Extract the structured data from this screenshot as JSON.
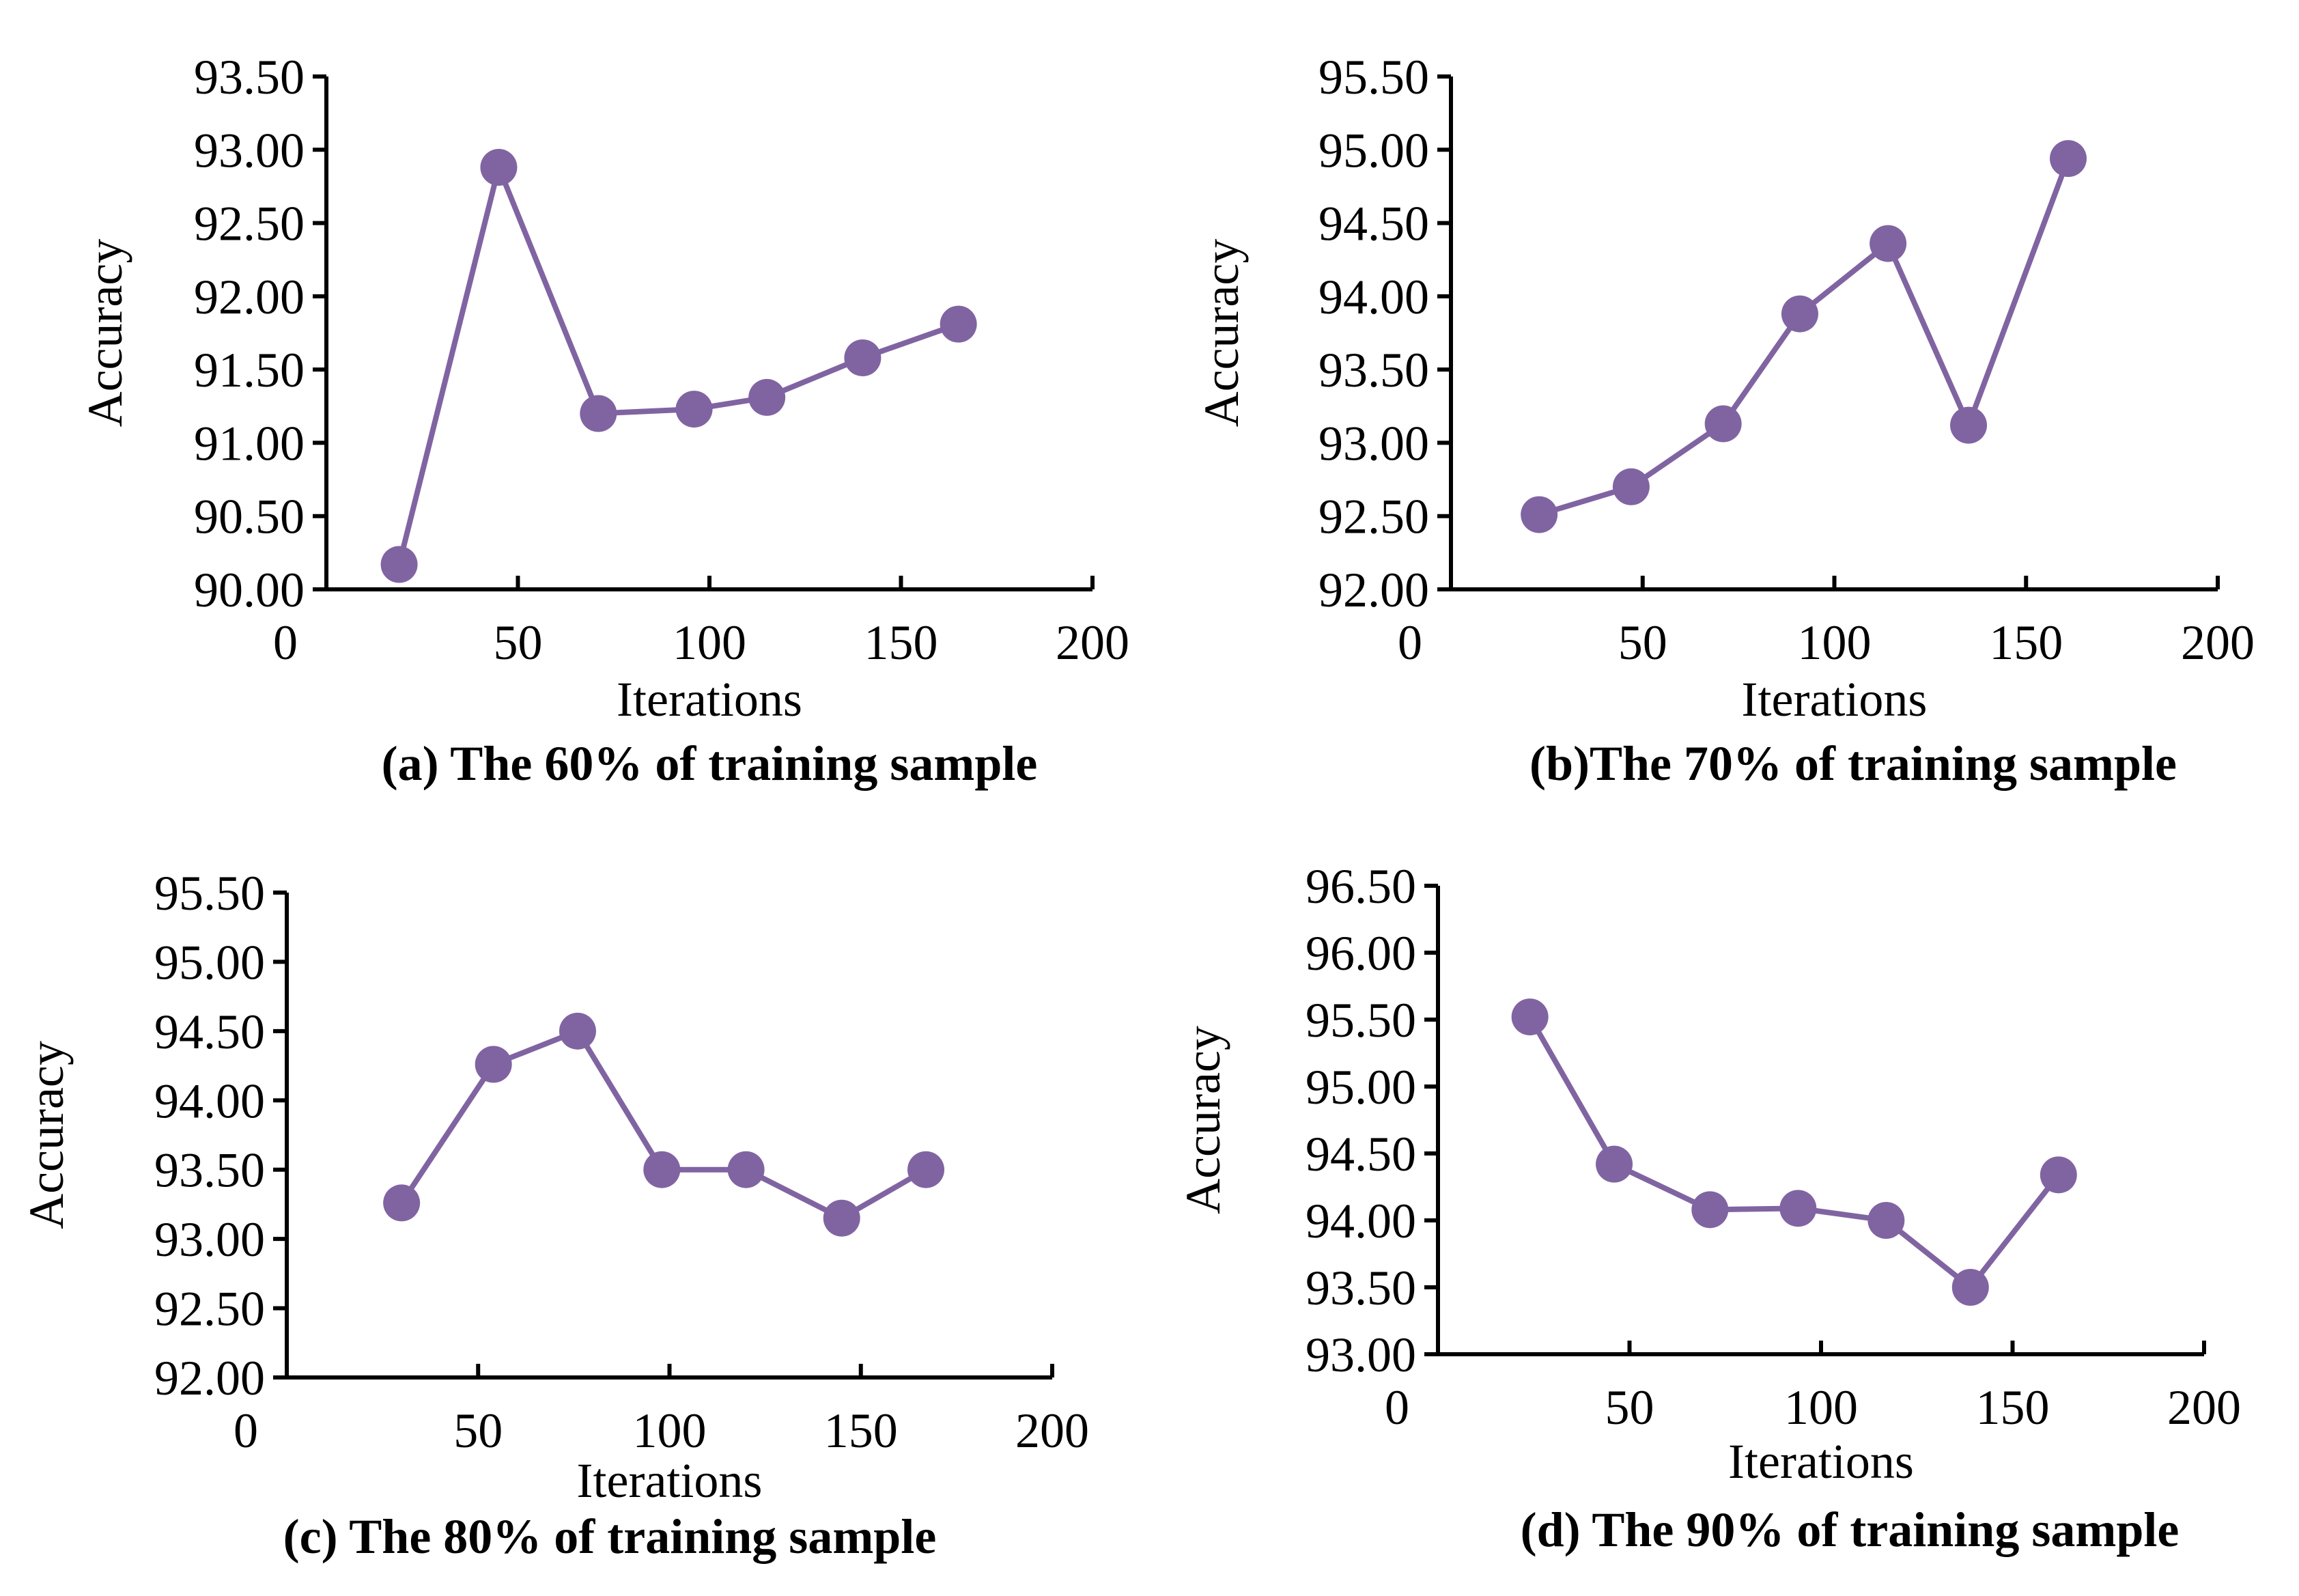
{
  "figure": {
    "series_color": "#8064a2",
    "axis_color": "#000000"
  },
  "chart_data": [
    {
      "type": "line",
      "caption": "(a) The 60% of training sample",
      "xlabel": "Iterations",
      "ylabel": "Accuracy",
      "xlim": [
        0,
        200
      ],
      "ylim": [
        90.0,
        93.5
      ],
      "xticks": [
        0,
        50,
        100,
        150,
        200
      ],
      "yticks": [
        90.0,
        90.5,
        91.0,
        91.5,
        92.0,
        92.5,
        93.0,
        93.5
      ],
      "xtick_labels": [
        "0",
        "50",
        "100",
        "150",
        "200"
      ],
      "ytick_labels": [
        "90.00",
        "90.50",
        "91.00",
        "91.50",
        "92.00",
        "92.50",
        "93.00",
        "93.50"
      ],
      "series": [
        {
          "name": "Accuracy",
          "x": [
            19,
            45,
            71,
            96,
            115,
            140,
            165
          ],
          "y": [
            90.17,
            92.88,
            91.2,
            91.23,
            91.31,
            91.58,
            91.81
          ]
        }
      ]
    },
    {
      "type": "line",
      "caption": "(b)The 70% of training sample",
      "xlabel": "Iterations",
      "ylabel": "Accuracy",
      "xlim": [
        0,
        200
      ],
      "ylim": [
        92.0,
        95.5
      ],
      "xticks": [
        0,
        50,
        100,
        150,
        200
      ],
      "yticks": [
        92.0,
        92.5,
        93.0,
        93.5,
        94.0,
        94.5,
        95.0,
        95.5
      ],
      "xtick_labels": [
        "0",
        "50",
        "100",
        "150",
        "200"
      ],
      "ytick_labels": [
        "92.00",
        "92.50",
        "93.00",
        "93.50",
        "94.00",
        "94.50",
        "95.00",
        "95.50"
      ],
      "series": [
        {
          "name": "Accuracy",
          "x": [
            23,
            47,
            71,
            91,
            114,
            135,
            161
          ],
          "y": [
            92.51,
            92.7,
            93.13,
            93.88,
            94.36,
            93.12,
            94.94
          ]
        }
      ]
    },
    {
      "type": "line",
      "caption": "(c) The 80% of training sample",
      "xlabel": "Iterations",
      "ylabel": "Accuracy",
      "xlim": [
        0,
        200
      ],
      "ylim": [
        92.0,
        95.5
      ],
      "xticks": [
        0,
        50,
        100,
        150,
        200
      ],
      "yticks": [
        92.0,
        92.5,
        93.0,
        93.5,
        94.0,
        94.5,
        95.0,
        95.5
      ],
      "xtick_labels": [
        "0",
        "50",
        "100",
        "150",
        "200"
      ],
      "ytick_labels": [
        "92.00",
        "92.50",
        "93.00",
        "93.50",
        "94.00",
        "94.50",
        "95.00",
        "95.50"
      ],
      "series": [
        {
          "name": "Accuracy",
          "x": [
            30,
            54,
            76,
            98,
            120,
            145,
            167
          ],
          "y": [
            93.26,
            94.26,
            94.5,
            93.5,
            93.5,
            93.15,
            93.5
          ]
        }
      ]
    },
    {
      "type": "line",
      "caption": "(d) The 90% of training sample",
      "xlabel": "Iterations",
      "ylabel": "Accuracy",
      "xlim": [
        0,
        200
      ],
      "ylim": [
        93.0,
        96.5
      ],
      "xticks": [
        0,
        50,
        100,
        150,
        200
      ],
      "yticks": [
        93.0,
        93.5,
        94.0,
        94.5,
        95.0,
        95.5,
        96.0,
        96.5
      ],
      "xtick_labels": [
        "0",
        "50",
        "100",
        "150",
        "200"
      ],
      "ytick_labels": [
        "93.00",
        "93.50",
        "94.00",
        "94.50",
        "95.00",
        "95.50",
        "96.00",
        "96.50"
      ],
      "series": [
        {
          "name": "Accuracy",
          "x": [
            24,
            46,
            71,
            94,
            117,
            139,
            162
          ],
          "y": [
            95.52,
            94.42,
            94.08,
            94.09,
            94.0,
            93.5,
            94.34
          ]
        }
      ]
    }
  ]
}
